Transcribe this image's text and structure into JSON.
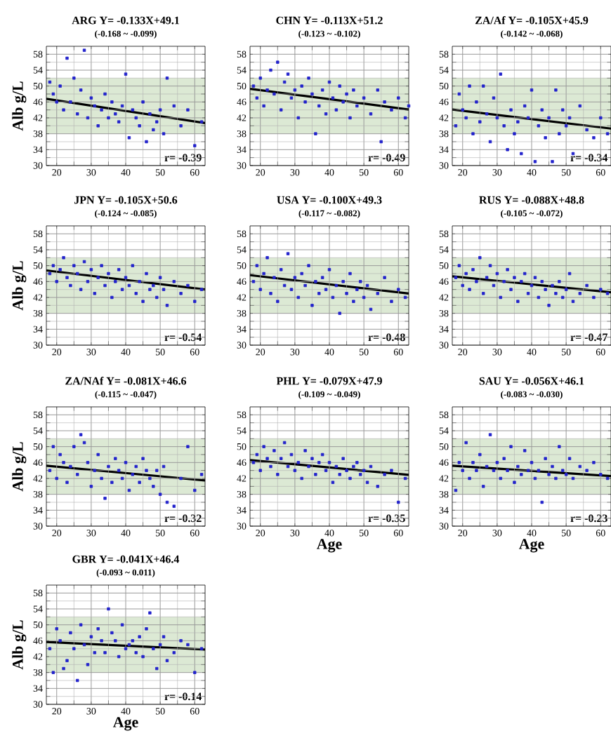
{
  "chart_data": [
    {
      "type": "scatter",
      "title": "ARG  Y= -0.133X+49.1",
      "subtitle": "(-0.168 ~ -0.099)",
      "ylabel": "Alb g/L",
      "xlim": [
        17,
        63
      ],
      "ylim": [
        30,
        60
      ],
      "xticks": [
        20,
        30,
        40,
        50,
        60
      ],
      "yticks": [
        30,
        34,
        38,
        42,
        46,
        50,
        54,
        58
      ],
      "grid": true,
      "bands": [
        {
          "axis": "y",
          "from": 38,
          "to": 52,
          "color": "#dce9d4"
        }
      ],
      "annotations": [
        "r= -0.39"
      ],
      "series": [
        {
          "marker": "square",
          "color": "#2222cc",
          "x": [
            18,
            19,
            20,
            21,
            22,
            23,
            24,
            25,
            26,
            27,
            28,
            29,
            30,
            31,
            32,
            33,
            34,
            35,
            36,
            37,
            38,
            39,
            40,
            41,
            42,
            43,
            44,
            45,
            46,
            47,
            48,
            49,
            50,
            51,
            52,
            54,
            56,
            58,
            60,
            62
          ],
          "values": [
            51,
            48,
            46,
            50,
            44,
            57,
            46,
            52,
            43,
            49,
            59,
            42,
            47,
            45,
            40,
            44,
            48,
            42,
            46,
            43,
            41,
            45,
            53,
            37,
            44,
            42,
            40,
            46,
            36,
            43,
            39,
            41,
            44,
            38,
            52,
            45,
            40,
            44,
            35,
            41
          ]
        },
        {
          "type": "line",
          "marker": "none",
          "color": "#000000",
          "x": [
            17,
            63
          ],
          "values": [
            46.8,
            40.7
          ]
        }
      ]
    },
    {
      "type": "scatter",
      "title": "CHN  Y= -0.113X+51.2",
      "subtitle": "(-0.123 ~ -0.102)",
      "xlim": [
        17,
        63
      ],
      "ylim": [
        30,
        60
      ],
      "xticks": [
        20,
        30,
        40,
        50,
        60
      ],
      "yticks": [
        30,
        34,
        38,
        42,
        46,
        50,
        54,
        58
      ],
      "grid": true,
      "bands": [
        {
          "axis": "y",
          "from": 38,
          "to": 52,
          "color": "#dce9d4"
        }
      ],
      "annotations": [
        "r= -0.49"
      ],
      "series": [
        {
          "marker": "square",
          "color": "#2222cc",
          "x": [
            18,
            19,
            20,
            21,
            22,
            23,
            24,
            25,
            26,
            27,
            28,
            29,
            30,
            31,
            32,
            33,
            34,
            35,
            36,
            37,
            38,
            39,
            40,
            41,
            42,
            43,
            44,
            45,
            46,
            47,
            48,
            50,
            52,
            54,
            55,
            56,
            58,
            60,
            62,
            63
          ],
          "values": [
            50,
            47,
            52,
            45,
            49,
            54,
            48,
            56,
            44,
            51,
            53,
            47,
            49,
            42,
            50,
            46,
            52,
            48,
            38,
            45,
            49,
            43,
            51,
            47,
            44,
            50,
            46,
            48,
            42,
            49,
            45,
            47,
            43,
            49,
            36,
            46,
            44,
            47,
            42,
            45
          ]
        },
        {
          "type": "line",
          "marker": "none",
          "color": "#000000",
          "x": [
            17,
            63
          ],
          "values": [
            49.3,
            44.1
          ]
        }
      ]
    },
    {
      "type": "scatter",
      "title": "ZA/Af  Y= -0.105X+45.9",
      "subtitle": "(-0.142 ~ -0.068)",
      "xlim": [
        17,
        63
      ],
      "ylim": [
        30,
        60
      ],
      "xticks": [
        20,
        30,
        40,
        50,
        60
      ],
      "yticks": [
        30,
        34,
        38,
        42,
        46,
        50,
        54,
        58
      ],
      "grid": true,
      "bands": [
        {
          "axis": "y",
          "from": 38,
          "to": 52,
          "color": "#dce9d4"
        }
      ],
      "annotations": [
        "r= -0.34"
      ],
      "series": [
        {
          "marker": "square",
          "color": "#2222cc",
          "x": [
            18,
            19,
            20,
            21,
            22,
            23,
            24,
            25,
            26,
            27,
            28,
            29,
            30,
            31,
            32,
            33,
            34,
            35,
            36,
            37,
            38,
            39,
            40,
            41,
            42,
            43,
            44,
            45,
            46,
            47,
            48,
            49,
            50,
            51,
            52,
            54,
            56,
            58,
            60,
            62
          ],
          "values": [
            40,
            48,
            44,
            42,
            50,
            38,
            46,
            41,
            50,
            43,
            36,
            47,
            42,
            53,
            40,
            34,
            44,
            38,
            41,
            33,
            45,
            42,
            49,
            31,
            40,
            44,
            37,
            42,
            31,
            49,
            38,
            44,
            40,
            42,
            33,
            45,
            39,
            37,
            42,
            38
          ]
        },
        {
          "type": "line",
          "marker": "none",
          "color": "#000000",
          "x": [
            17,
            63
          ],
          "values": [
            44.1,
            39.3
          ]
        }
      ]
    },
    {
      "type": "scatter",
      "title": "JPN  Y= -0.105X+50.6",
      "subtitle": "(-0.124 ~ -0.085)",
      "ylabel": "Alb g/L",
      "xlim": [
        17,
        63
      ],
      "ylim": [
        30,
        60
      ],
      "xticks": [
        20,
        30,
        40,
        50,
        60
      ],
      "yticks": [
        30,
        34,
        38,
        42,
        46,
        50,
        54,
        58
      ],
      "grid": true,
      "bands": [
        {
          "axis": "y",
          "from": 38,
          "to": 52,
          "color": "#dce9d4"
        }
      ],
      "annotations": [
        "r= -0.54"
      ],
      "series": [
        {
          "marker": "square",
          "color": "#2222cc",
          "x": [
            18,
            19,
            20,
            21,
            22,
            23,
            24,
            25,
            26,
            27,
            28,
            29,
            30,
            31,
            32,
            33,
            34,
            35,
            36,
            37,
            38,
            39,
            40,
            41,
            42,
            43,
            44,
            45,
            46,
            47,
            48,
            49,
            50,
            51,
            52,
            54,
            56,
            58,
            60,
            62
          ],
          "values": [
            48,
            50,
            46,
            49,
            52,
            47,
            45,
            50,
            48,
            44,
            51,
            46,
            49,
            43,
            47,
            50,
            45,
            48,
            42,
            46,
            49,
            44,
            47,
            45,
            50,
            43,
            46,
            41,
            48,
            44,
            45,
            42,
            47,
            44,
            40,
            46,
            43,
            45,
            41,
            44
          ]
        },
        {
          "type": "line",
          "marker": "none",
          "color": "#000000",
          "x": [
            17,
            63
          ],
          "values": [
            48.8,
            44.0
          ]
        }
      ]
    },
    {
      "type": "scatter",
      "title": "USA  Y= -0.100X+49.3",
      "subtitle": "(-0.117 ~ -0.082)",
      "xlim": [
        17,
        63
      ],
      "ylim": [
        30,
        60
      ],
      "xticks": [
        20,
        30,
        40,
        50,
        60
      ],
      "yticks": [
        30,
        34,
        38,
        42,
        46,
        50,
        54,
        58
      ],
      "grid": true,
      "bands": [
        {
          "axis": "y",
          "from": 38,
          "to": 52,
          "color": "#dce9d4"
        }
      ],
      "annotations": [
        "r= -0.48"
      ],
      "series": [
        {
          "marker": "square",
          "color": "#2222cc",
          "x": [
            18,
            19,
            20,
            21,
            22,
            23,
            24,
            25,
            26,
            27,
            28,
            29,
            30,
            31,
            32,
            33,
            34,
            35,
            36,
            37,
            38,
            39,
            40,
            41,
            42,
            43,
            44,
            45,
            46,
            47,
            48,
            49,
            50,
            51,
            52,
            54,
            56,
            58,
            60,
            62
          ],
          "values": [
            46,
            50,
            44,
            48,
            52,
            43,
            47,
            41,
            49,
            45,
            53,
            44,
            47,
            42,
            48,
            45,
            50,
            40,
            46,
            43,
            47,
            44,
            49,
            42,
            45,
            38,
            46,
            43,
            48,
            41,
            44,
            46,
            42,
            45,
            39,
            43,
            47,
            41,
            44,
            42
          ]
        },
        {
          "type": "line",
          "marker": "none",
          "color": "#000000",
          "x": [
            17,
            63
          ],
          "values": [
            47.6,
            43.0
          ]
        }
      ]
    },
    {
      "type": "scatter",
      "title": "RUS  Y= -0.088X+48.8",
      "subtitle": "(-0.105 ~ -0.072)",
      "xlim": [
        17,
        63
      ],
      "ylim": [
        30,
        60
      ],
      "xticks": [
        20,
        30,
        40,
        50,
        60
      ],
      "yticks": [
        30,
        34,
        38,
        42,
        46,
        50,
        54,
        58
      ],
      "grid": true,
      "bands": [
        {
          "axis": "y",
          "from": 38,
          "to": 52,
          "color": "#dce9d4"
        }
      ],
      "annotations": [
        "r= -0.47"
      ],
      "series": [
        {
          "marker": "square",
          "color": "#2222cc",
          "x": [
            18,
            19,
            20,
            21,
            22,
            23,
            24,
            25,
            26,
            27,
            28,
            29,
            30,
            31,
            32,
            33,
            34,
            35,
            36,
            37,
            38,
            39,
            40,
            41,
            42,
            43,
            44,
            45,
            46,
            47,
            48,
            49,
            50,
            51,
            52,
            54,
            56,
            58,
            60,
            62
          ],
          "values": [
            47,
            50,
            45,
            48,
            44,
            49,
            46,
            52,
            43,
            47,
            50,
            45,
            48,
            42,
            46,
            49,
            44,
            47,
            41,
            46,
            48,
            43,
            45,
            47,
            42,
            46,
            44,
            40,
            45,
            43,
            46,
            42,
            44,
            48,
            41,
            43,
            45,
            42,
            44,
            43
          ]
        },
        {
          "type": "line",
          "marker": "none",
          "color": "#000000",
          "x": [
            17,
            63
          ],
          "values": [
            47.3,
            43.3
          ]
        }
      ]
    },
    {
      "type": "scatter",
      "title": "ZA/NAf  Y= -0.081X+46.6",
      "subtitle": "(-0.115 ~ -0.047)",
      "ylabel": "Alb g/L",
      "xlim": [
        17,
        63
      ],
      "ylim": [
        30,
        60
      ],
      "xticks": [
        20,
        30,
        40,
        50,
        60
      ],
      "yticks": [
        30,
        34,
        38,
        42,
        46,
        50,
        54,
        58
      ],
      "grid": true,
      "bands": [
        {
          "axis": "y",
          "from": 38,
          "to": 52,
          "color": "#dce9d4"
        }
      ],
      "annotations": [
        "r= -0.32"
      ],
      "series": [
        {
          "marker": "square",
          "color": "#2222cc",
          "x": [
            18,
            19,
            20,
            21,
            22,
            23,
            24,
            25,
            26,
            27,
            28,
            29,
            30,
            31,
            32,
            33,
            34,
            35,
            36,
            37,
            38,
            39,
            40,
            41,
            42,
            43,
            44,
            45,
            46,
            47,
            48,
            49,
            50,
            51,
            52,
            54,
            56,
            58,
            60,
            62
          ],
          "values": [
            44,
            50,
            42,
            48,
            46,
            41,
            45,
            50,
            43,
            53,
            51,
            46,
            40,
            44,
            48,
            42,
            37,
            45,
            41,
            47,
            44,
            42,
            46,
            39,
            43,
            45,
            41,
            47,
            44,
            42,
            40,
            44,
            38,
            45,
            36,
            35,
            42,
            50,
            39,
            43
          ]
        },
        {
          "type": "line",
          "marker": "none",
          "color": "#000000",
          "x": [
            17,
            63
          ],
          "values": [
            45.2,
            41.5
          ]
        }
      ]
    },
    {
      "type": "scatter",
      "title": "PHL  Y= -0.079X+47.9",
      "subtitle": "(-0.109 ~ -0.049)",
      "xlabel": "Age",
      "xlim": [
        17,
        63
      ],
      "ylim": [
        30,
        60
      ],
      "xticks": [
        20,
        30,
        40,
        50,
        60
      ],
      "yticks": [
        30,
        34,
        38,
        42,
        46,
        50,
        54,
        58
      ],
      "grid": true,
      "bands": [
        {
          "axis": "y",
          "from": 38,
          "to": 52,
          "color": "#dce9d4"
        }
      ],
      "annotations": [
        "r= -0.35"
      ],
      "series": [
        {
          "marker": "square",
          "color": "#2222cc",
          "x": [
            18,
            19,
            20,
            21,
            22,
            23,
            24,
            25,
            26,
            27,
            28,
            29,
            30,
            31,
            32,
            33,
            34,
            35,
            36,
            37,
            38,
            39,
            40,
            41,
            42,
            43,
            44,
            45,
            46,
            47,
            48,
            49,
            50,
            51,
            52,
            54,
            56,
            58,
            60,
            62
          ],
          "values": [
            46,
            48,
            44,
            50,
            47,
            45,
            49,
            43,
            47,
            51,
            45,
            48,
            44,
            46,
            42,
            49,
            45,
            47,
            43,
            46,
            48,
            44,
            46,
            41,
            45,
            43,
            47,
            44,
            42,
            45,
            46,
            43,
            44,
            41,
            45,
            40,
            43,
            44,
            36,
            42
          ]
        },
        {
          "type": "line",
          "marker": "none",
          "color": "#000000",
          "x": [
            17,
            63
          ],
          "values": [
            46.6,
            42.9
          ]
        }
      ]
    },
    {
      "type": "scatter",
      "title": "SAU  Y= -0.056X+46.1",
      "subtitle": "(-0.083 ~ -0.030)",
      "xlabel": "Age",
      "xlim": [
        17,
        63
      ],
      "ylim": [
        30,
        60
      ],
      "xticks": [
        20,
        30,
        40,
        50,
        60
      ],
      "yticks": [
        30,
        34,
        38,
        42,
        46,
        50,
        54,
        58
      ],
      "grid": true,
      "bands": [
        {
          "axis": "y",
          "from": 38,
          "to": 52,
          "color": "#dce9d4"
        }
      ],
      "annotations": [
        "r= -0.23"
      ],
      "series": [
        {
          "marker": "square",
          "color": "#2222cc",
          "x": [
            18,
            19,
            20,
            21,
            22,
            23,
            24,
            25,
            26,
            27,
            28,
            29,
            30,
            31,
            32,
            33,
            34,
            35,
            36,
            37,
            38,
            39,
            40,
            41,
            42,
            43,
            44,
            45,
            46,
            47,
            48,
            49,
            50,
            51,
            52,
            54,
            56,
            58,
            60,
            62
          ],
          "values": [
            39,
            46,
            44,
            51,
            42,
            46,
            44,
            48,
            40,
            45,
            53,
            44,
            46,
            42,
            47,
            44,
            50,
            41,
            45,
            43,
            49,
            44,
            46,
            42,
            44,
            36,
            47,
            43,
            45,
            42,
            50,
            44,
            43,
            47,
            42,
            45,
            44,
            46,
            43,
            42
          ]
        },
        {
          "type": "line",
          "marker": "none",
          "color": "#000000",
          "x": [
            17,
            63
          ],
          "values": [
            45.2,
            42.6
          ]
        }
      ]
    },
    {
      "type": "scatter",
      "title": "GBR  Y= -0.041X+46.4",
      "subtitle": "(-0.093 ~ 0.011)",
      "xlabel": "Age",
      "ylabel": "Alb g/L",
      "xlim": [
        17,
        63
      ],
      "ylim": [
        30,
        60
      ],
      "xticks": [
        20,
        30,
        40,
        50,
        60
      ],
      "yticks": [
        30,
        34,
        38,
        42,
        46,
        50,
        54,
        58
      ],
      "grid": true,
      "bands": [
        {
          "axis": "y",
          "from": 38,
          "to": 52,
          "color": "#dce9d4"
        }
      ],
      "annotations": [
        "r= -0.14"
      ],
      "series": [
        {
          "marker": "square",
          "color": "#2222cc",
          "x": [
            18,
            19,
            20,
            21,
            22,
            23,
            24,
            25,
            26,
            27,
            28,
            29,
            30,
            31,
            32,
            33,
            34,
            35,
            36,
            37,
            38,
            39,
            40,
            41,
            42,
            43,
            44,
            45,
            46,
            47,
            48,
            49,
            50,
            51,
            52,
            54,
            56,
            58,
            60,
            62
          ],
          "values": [
            44,
            38,
            49,
            46,
            39,
            41,
            48,
            44,
            36,
            50,
            45,
            40,
            47,
            43,
            49,
            46,
            43,
            54,
            48,
            46,
            42,
            50,
            44,
            45,
            46,
            43,
            47,
            42,
            49,
            53,
            44,
            39,
            45,
            47,
            41,
            43,
            46,
            45,
            38,
            44
          ]
        },
        {
          "type": "line",
          "marker": "none",
          "color": "#000000",
          "x": [
            17,
            63
          ],
          "values": [
            45.7,
            43.8
          ]
        }
      ]
    }
  ]
}
